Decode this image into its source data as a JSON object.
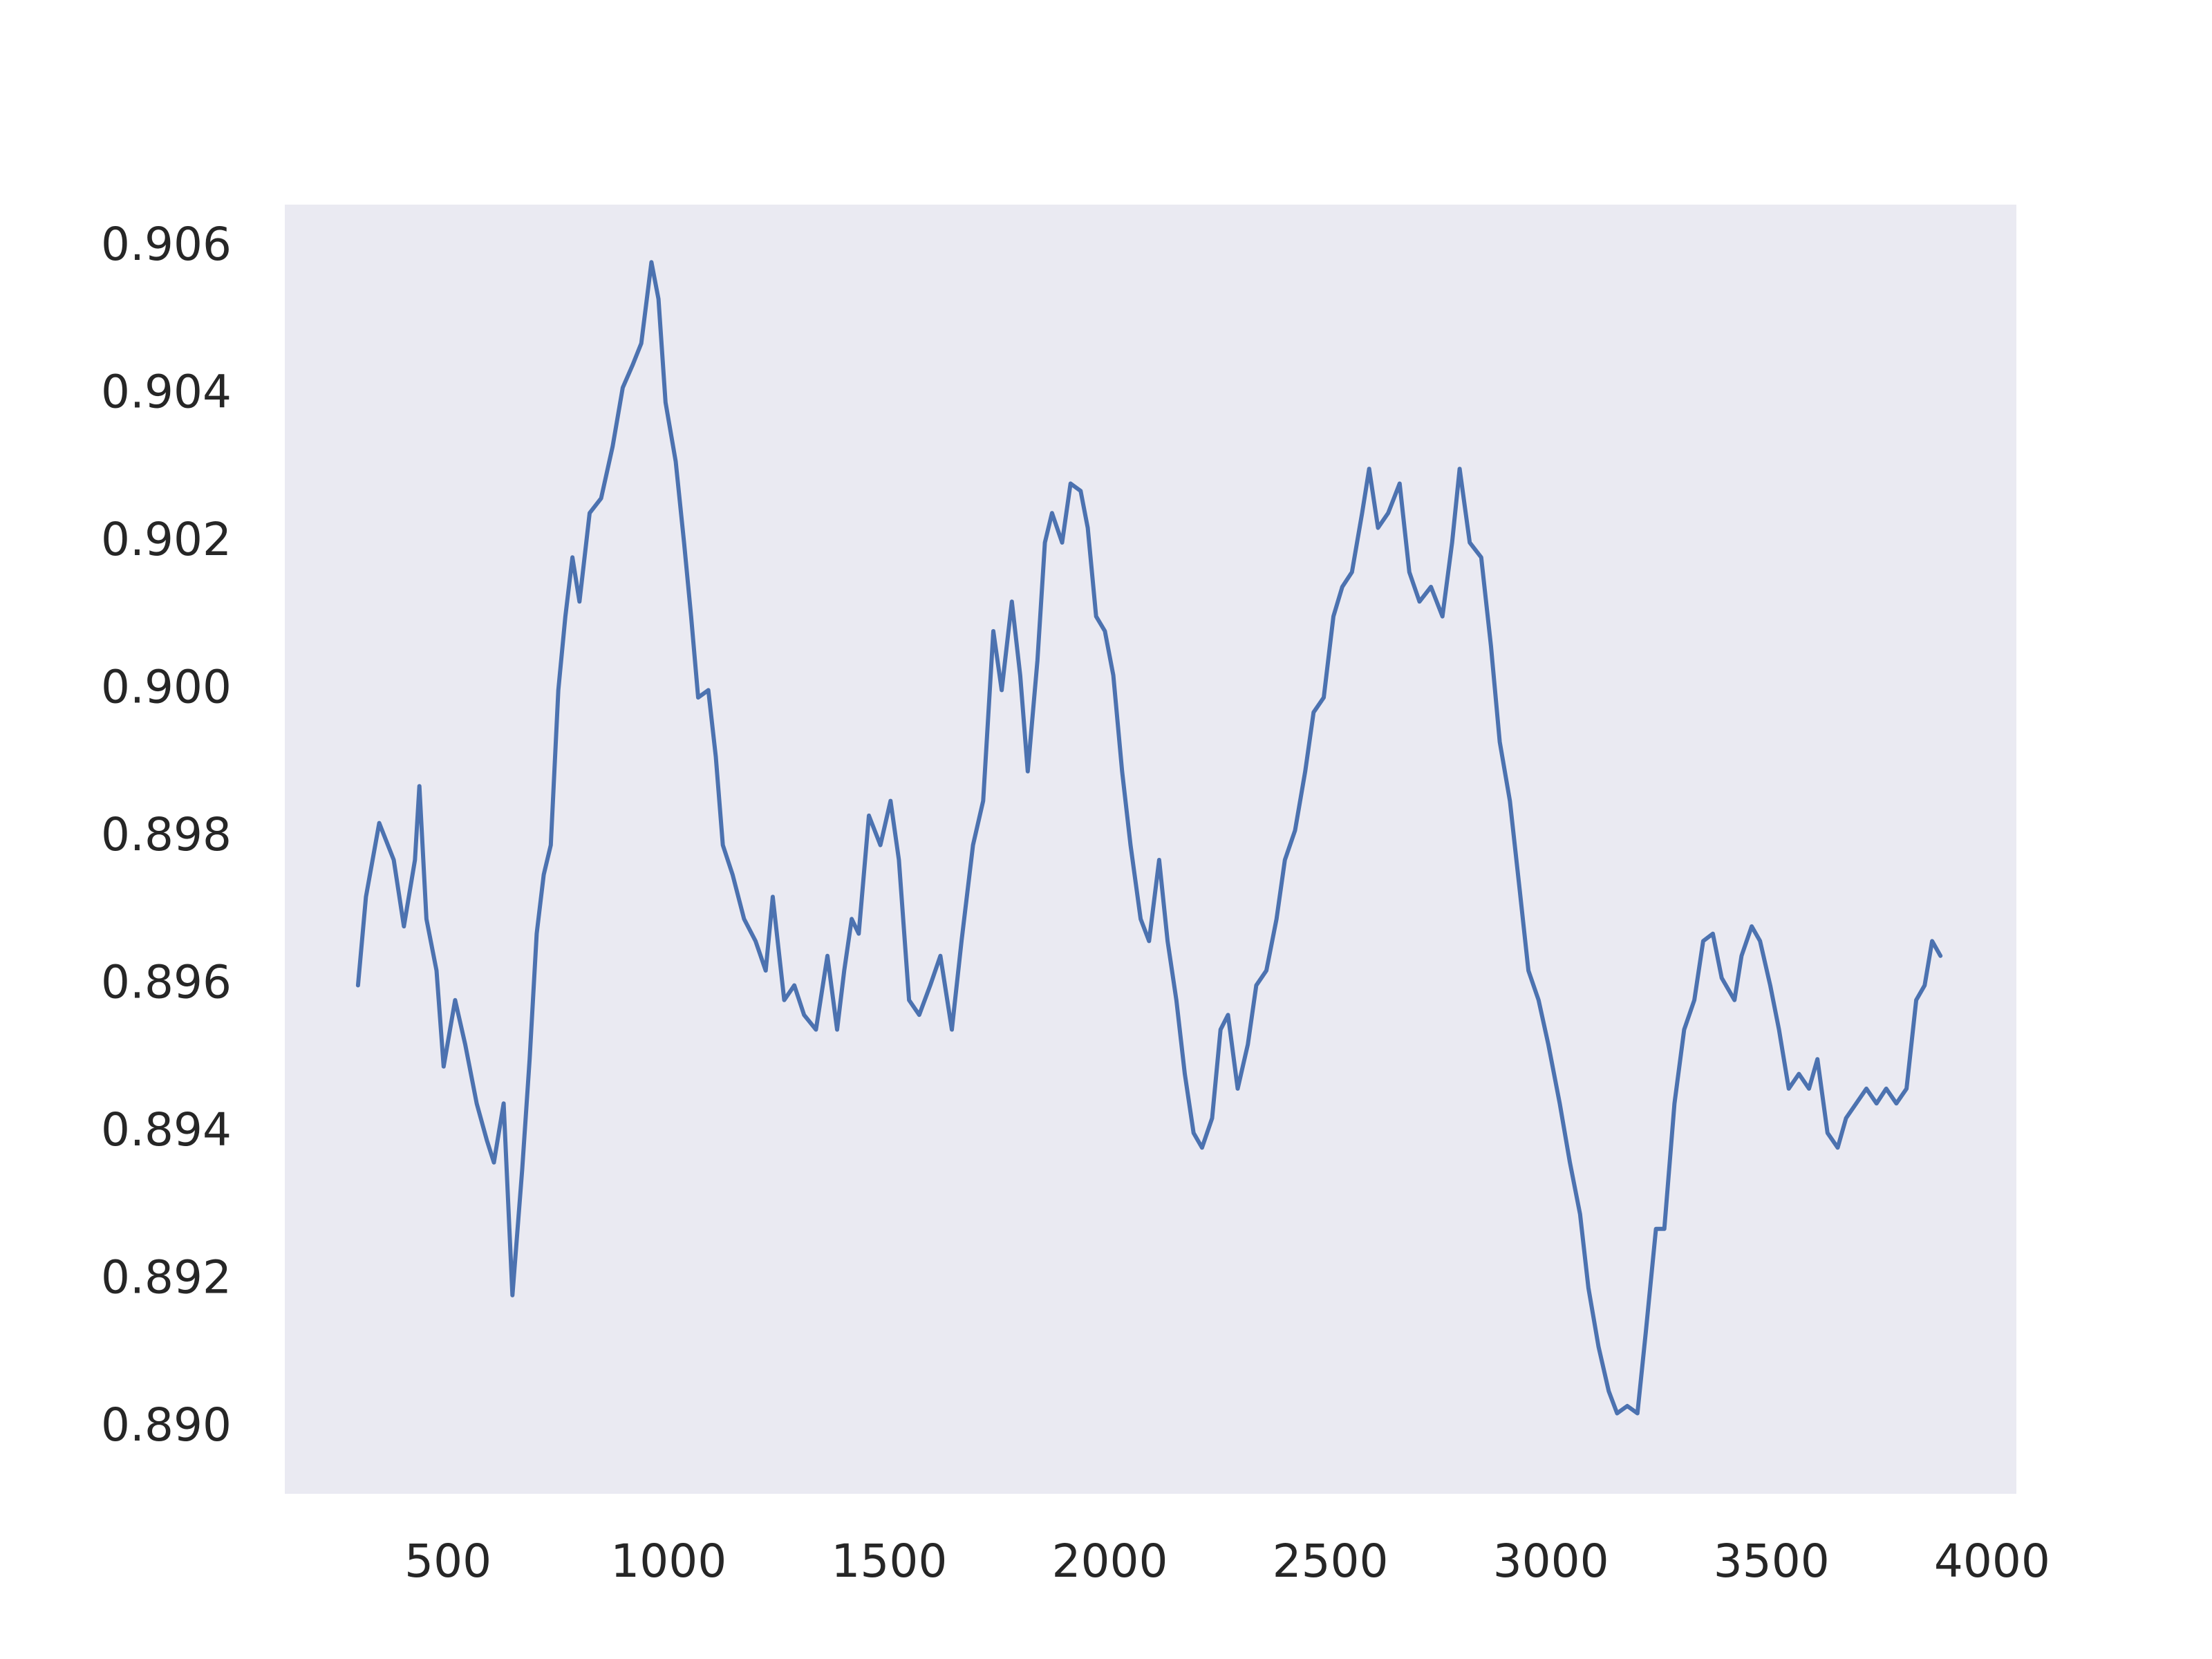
{
  "chart_data": {
    "type": "line",
    "x": [
      296,
      314,
      344,
      377,
      400,
      425,
      435,
      451,
      474,
      490,
      516,
      539,
      565,
      588,
      604,
      626,
      646,
      668,
      685,
      701,
      717,
      733,
      750,
      766,
      782,
      798,
      821,
      847,
      873,
      896,
      918,
      938,
      961,
      977,
      993,
      1016,
      1035,
      1051,
      1067,
      1090,
      1107,
      1123,
      1145,
      1171,
      1197,
      1220,
      1236,
      1262,
      1285,
      1307,
      1334,
      1360,
      1382,
      1398,
      1415,
      1431,
      1454,
      1480,
      1503,
      1522,
      1545,
      1568,
      1593,
      1616,
      1642,
      1664,
      1690,
      1713,
      1736,
      1755,
      1778,
      1797,
      1814,
      1836,
      1853,
      1869,
      1892,
      1911,
      1934,
      1950,
      1969,
      1989,
      2008,
      2028,
      2047,
      2070,
      2089,
      2112,
      2131,
      2151,
      2170,
      2190,
      2209,
      2232,
      2251,
      2268,
      2290,
      2313,
      2332,
      2355,
      2378,
      2397,
      2420,
      2443,
      2462,
      2485,
      2507,
      2527,
      2549,
      2572,
      2588,
      2608,
      2631,
      2657,
      2679,
      2702,
      2728,
      2754,
      2776,
      2793,
      2816,
      2842,
      2864,
      2884,
      2907,
      2929,
      2949,
      2972,
      2994,
      3020,
      3043,
      3066,
      3085,
      3108,
      3131,
      3150,
      3173,
      3196,
      3215,
      3238,
      3257,
      3280,
      3302,
      3325,
      3345,
      3367,
      3387,
      3416,
      3432,
      3455,
      3474,
      3497,
      3517,
      3539,
      3562,
      3585,
      3604,
      3627,
      3650,
      3669,
      3692,
      3715,
      3738,
      3760,
      3783,
      3806,
      3828,
      3847,
      3864,
      3883
    ],
    "series": [
      {
        "color": "#4c72b0",
        "values": [
          0.896,
          0.8972,
          0.8982,
          0.8977,
          0.8968,
          0.8977,
          0.8987,
          0.8969,
          0.8962,
          0.8949,
          0.8958,
          0.8952,
          0.8944,
          0.8939,
          0.8936,
          0.8944,
          0.8918,
          0.8935,
          0.895,
          0.8967,
          0.8975,
          0.8979,
          0.9,
          0.901,
          0.9018,
          0.9012,
          0.9024,
          0.9026,
          0.9033,
          0.9041,
          0.9044,
          0.9047,
          0.9058,
          0.9053,
          0.9039,
          0.9031,
          0.902,
          0.901,
          0.8999,
          0.9,
          0.8991,
          0.8979,
          0.8975,
          0.8969,
          0.8966,
          0.8962,
          0.8972,
          0.8958,
          0.896,
          0.8956,
          0.8954,
          0.8964,
          0.8954,
          0.8962,
          0.8969,
          0.8967,
          0.8983,
          0.8979,
          0.8985,
          0.8977,
          0.8958,
          0.8956,
          0.896,
          0.8964,
          0.8954,
          0.8966,
          0.8979,
          0.8985,
          0.9008,
          0.9,
          0.9012,
          0.9002,
          0.8989,
          0.9004,
          0.902,
          0.9024,
          0.902,
          0.9028,
          0.9027,
          0.9022,
          0.901,
          0.9008,
          0.9002,
          0.8989,
          0.8979,
          0.8969,
          0.8966,
          0.8977,
          0.8966,
          0.8958,
          0.8948,
          0.894,
          0.8938,
          0.8942,
          0.8954,
          0.8956,
          0.8946,
          0.8952,
          0.896,
          0.8962,
          0.8969,
          0.8977,
          0.8981,
          0.8989,
          0.8997,
          0.8999,
          0.901,
          0.9014,
          0.9016,
          0.9024,
          0.903,
          0.9022,
          0.9024,
          0.9028,
          0.9016,
          0.9012,
          0.9014,
          0.901,
          0.902,
          0.903,
          0.902,
          0.9018,
          0.9006,
          0.8993,
          0.8985,
          0.8973,
          0.8962,
          0.8958,
          0.8952,
          0.8944,
          0.8936,
          0.8929,
          0.8919,
          0.8911,
          0.8905,
          0.8902,
          0.8903,
          0.8902,
          0.8913,
          0.8927,
          0.8927,
          0.8944,
          0.8954,
          0.8958,
          0.8966,
          0.8967,
          0.8961,
          0.8958,
          0.8964,
          0.8968,
          0.8966,
          0.896,
          0.8954,
          0.8946,
          0.8948,
          0.8946,
          0.895,
          0.894,
          0.8938,
          0.8942,
          0.8944,
          0.8946,
          0.8944,
          0.8946,
          0.8944,
          0.8946,
          0.8958,
          0.896,
          0.8966,
          0.8964
        ]
      }
    ],
    "xlim": [
      130,
      4055
    ],
    "xticks": [
      500,
      1000,
      1500,
      2000,
      2500,
      3000,
      3500,
      4000
    ],
    "ylim": [
      0.88911,
      0.90658
    ],
    "yticks": [
      {
        "value": 0.89,
        "label": "0.890"
      },
      0.892,
      0.894,
      0.896,
      0.898,
      {
        "value": 0.9,
        "label": "0.900"
      },
      0.902,
      0.904,
      0.906
    ],
    "grid": false
  }
}
